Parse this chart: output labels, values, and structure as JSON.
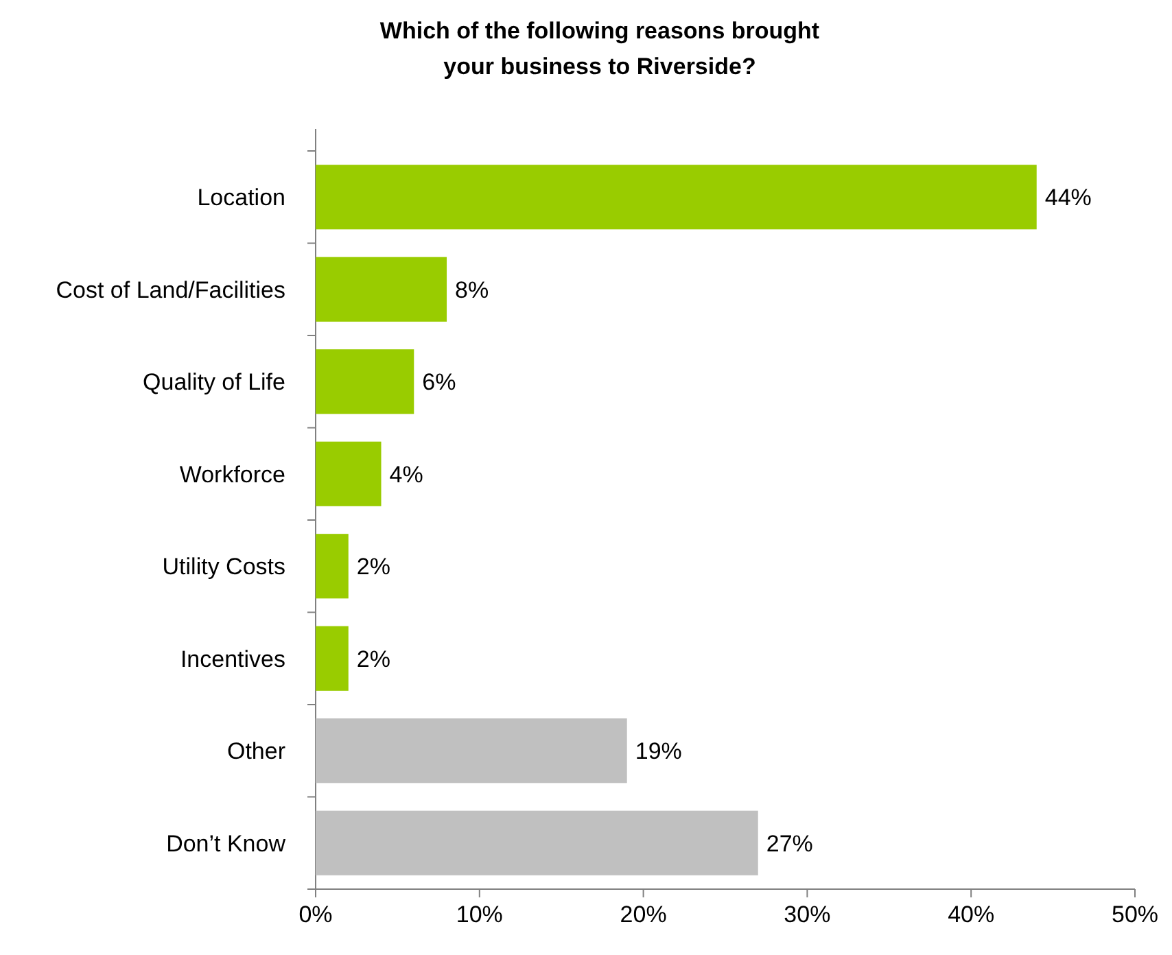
{
  "chart_data": {
    "type": "bar",
    "orientation": "horizontal",
    "title": "Which of the following reasons brought your business to Riverside?",
    "categories": [
      "Location",
      "Cost of Land/Facilities",
      "Quality of Life",
      "Workforce",
      "Utility Costs",
      "Incentives",
      "Other",
      "Don’t Know"
    ],
    "values": [
      44,
      8,
      6,
      4,
      2,
      2,
      19,
      27
    ],
    "colors": [
      "#99cc00",
      "#99cc00",
      "#99cc00",
      "#99cc00",
      "#99cc00",
      "#99cc00",
      "#c0c0c0",
      "#c0c0c0"
    ],
    "value_labels": [
      "44%",
      "8%",
      "6%",
      "4%",
      "2%",
      "2%",
      "19%",
      "27%"
    ],
    "xlim": [
      0,
      50
    ],
    "xticks": [
      {
        "value": 0,
        "label": "0%"
      },
      {
        "value": 10,
        "label": "10%"
      },
      {
        "value": 20,
        "label": "20%"
      },
      {
        "value": 30,
        "label": "30%"
      },
      {
        "value": 40,
        "label": "40%"
      },
      {
        "value": 50,
        "label": "50%"
      }
    ]
  }
}
